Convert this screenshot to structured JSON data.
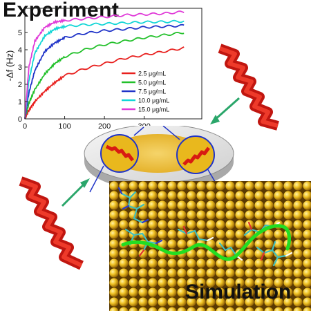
{
  "titles": {
    "experiment": "Experiment",
    "simulation": "Simulation"
  },
  "chart_data": {
    "type": "line",
    "title": "",
    "xlabel": "",
    "ylabel": "-Δf (Hz)",
    "xlim": [
      0,
      410
    ],
    "ylim": [
      0,
      6
    ],
    "x_ticks": [
      "0",
      "100",
      "200",
      "300"
    ],
    "y_ticks": [
      "0",
      "1",
      "2",
      "3",
      "4",
      "5"
    ],
    "legend_position": "bottom-right",
    "series": [
      {
        "name": "2.5 μg/mL",
        "color": "#e8201e",
        "points": [
          [
            0,
            0
          ],
          [
            10,
            0.5
          ],
          [
            25,
            1.0
          ],
          [
            50,
            1.6
          ],
          [
            75,
            2.1
          ],
          [
            100,
            2.5
          ],
          [
            150,
            2.9
          ],
          [
            200,
            3.2
          ],
          [
            250,
            3.5
          ],
          [
            300,
            3.7
          ],
          [
            350,
            3.9
          ],
          [
            400,
            4.1
          ]
        ]
      },
      {
        "name": "5.0 μg/mL",
        "color": "#22c02a",
        "points": [
          [
            0,
            0
          ],
          [
            10,
            0.9
          ],
          [
            25,
            1.7
          ],
          [
            50,
            2.6
          ],
          [
            75,
            3.2
          ],
          [
            100,
            3.6
          ],
          [
            150,
            4.0
          ],
          [
            200,
            4.3
          ],
          [
            250,
            4.5
          ],
          [
            300,
            4.7
          ],
          [
            350,
            4.85
          ],
          [
            400,
            5.0
          ]
        ]
      },
      {
        "name": "7.5 μg/mL",
        "color": "#1f33c8",
        "points": [
          [
            0,
            0
          ],
          [
            10,
            1.5
          ],
          [
            25,
            2.8
          ],
          [
            50,
            3.9
          ],
          [
            75,
            4.4
          ],
          [
            100,
            4.7
          ],
          [
            150,
            4.95
          ],
          [
            200,
            5.1
          ],
          [
            250,
            5.2
          ],
          [
            300,
            5.3
          ],
          [
            350,
            5.35
          ],
          [
            400,
            5.4
          ]
        ]
      },
      {
        "name": "10.0 μg/mL",
        "color": "#12d6d6",
        "points": [
          [
            0,
            0
          ],
          [
            10,
            2.2
          ],
          [
            25,
            3.8
          ],
          [
            50,
            4.8
          ],
          [
            75,
            5.2
          ],
          [
            100,
            5.35
          ],
          [
            150,
            5.45
          ],
          [
            200,
            5.5
          ],
          [
            250,
            5.55
          ],
          [
            300,
            5.6
          ],
          [
            350,
            5.62
          ],
          [
            400,
            5.65
          ]
        ]
      },
      {
        "name": "15.0 μg/mL",
        "color": "#e03ad8",
        "points": [
          [
            0,
            0
          ],
          [
            10,
            3.0
          ],
          [
            25,
            4.5
          ],
          [
            50,
            5.3
          ],
          [
            75,
            5.6
          ],
          [
            100,
            5.7
          ],
          [
            150,
            5.8
          ],
          [
            200,
            5.9
          ],
          [
            250,
            6.0
          ],
          [
            300,
            6.05
          ],
          [
            350,
            6.1
          ],
          [
            400,
            6.2
          ]
        ]
      }
    ]
  },
  "colors": {
    "peptide": "#d81b12",
    "arrow": "#2aa66a",
    "gold": "#e9b81d",
    "backbone": "#22dd22"
  }
}
